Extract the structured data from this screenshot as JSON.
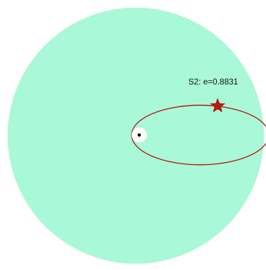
{
  "diagram": {
    "orbit_label": "S2: e=0.8831",
    "eccentricity": 0.8831,
    "colors": {
      "background_disk": "#a9f8d8",
      "orbit": "#b31b12",
      "star": "#b31b12",
      "central_mass": "#000000",
      "central_halo": "#ffffff"
    },
    "icons": {
      "star_marker": "star-icon",
      "central_object": "black-dot-icon"
    }
  }
}
